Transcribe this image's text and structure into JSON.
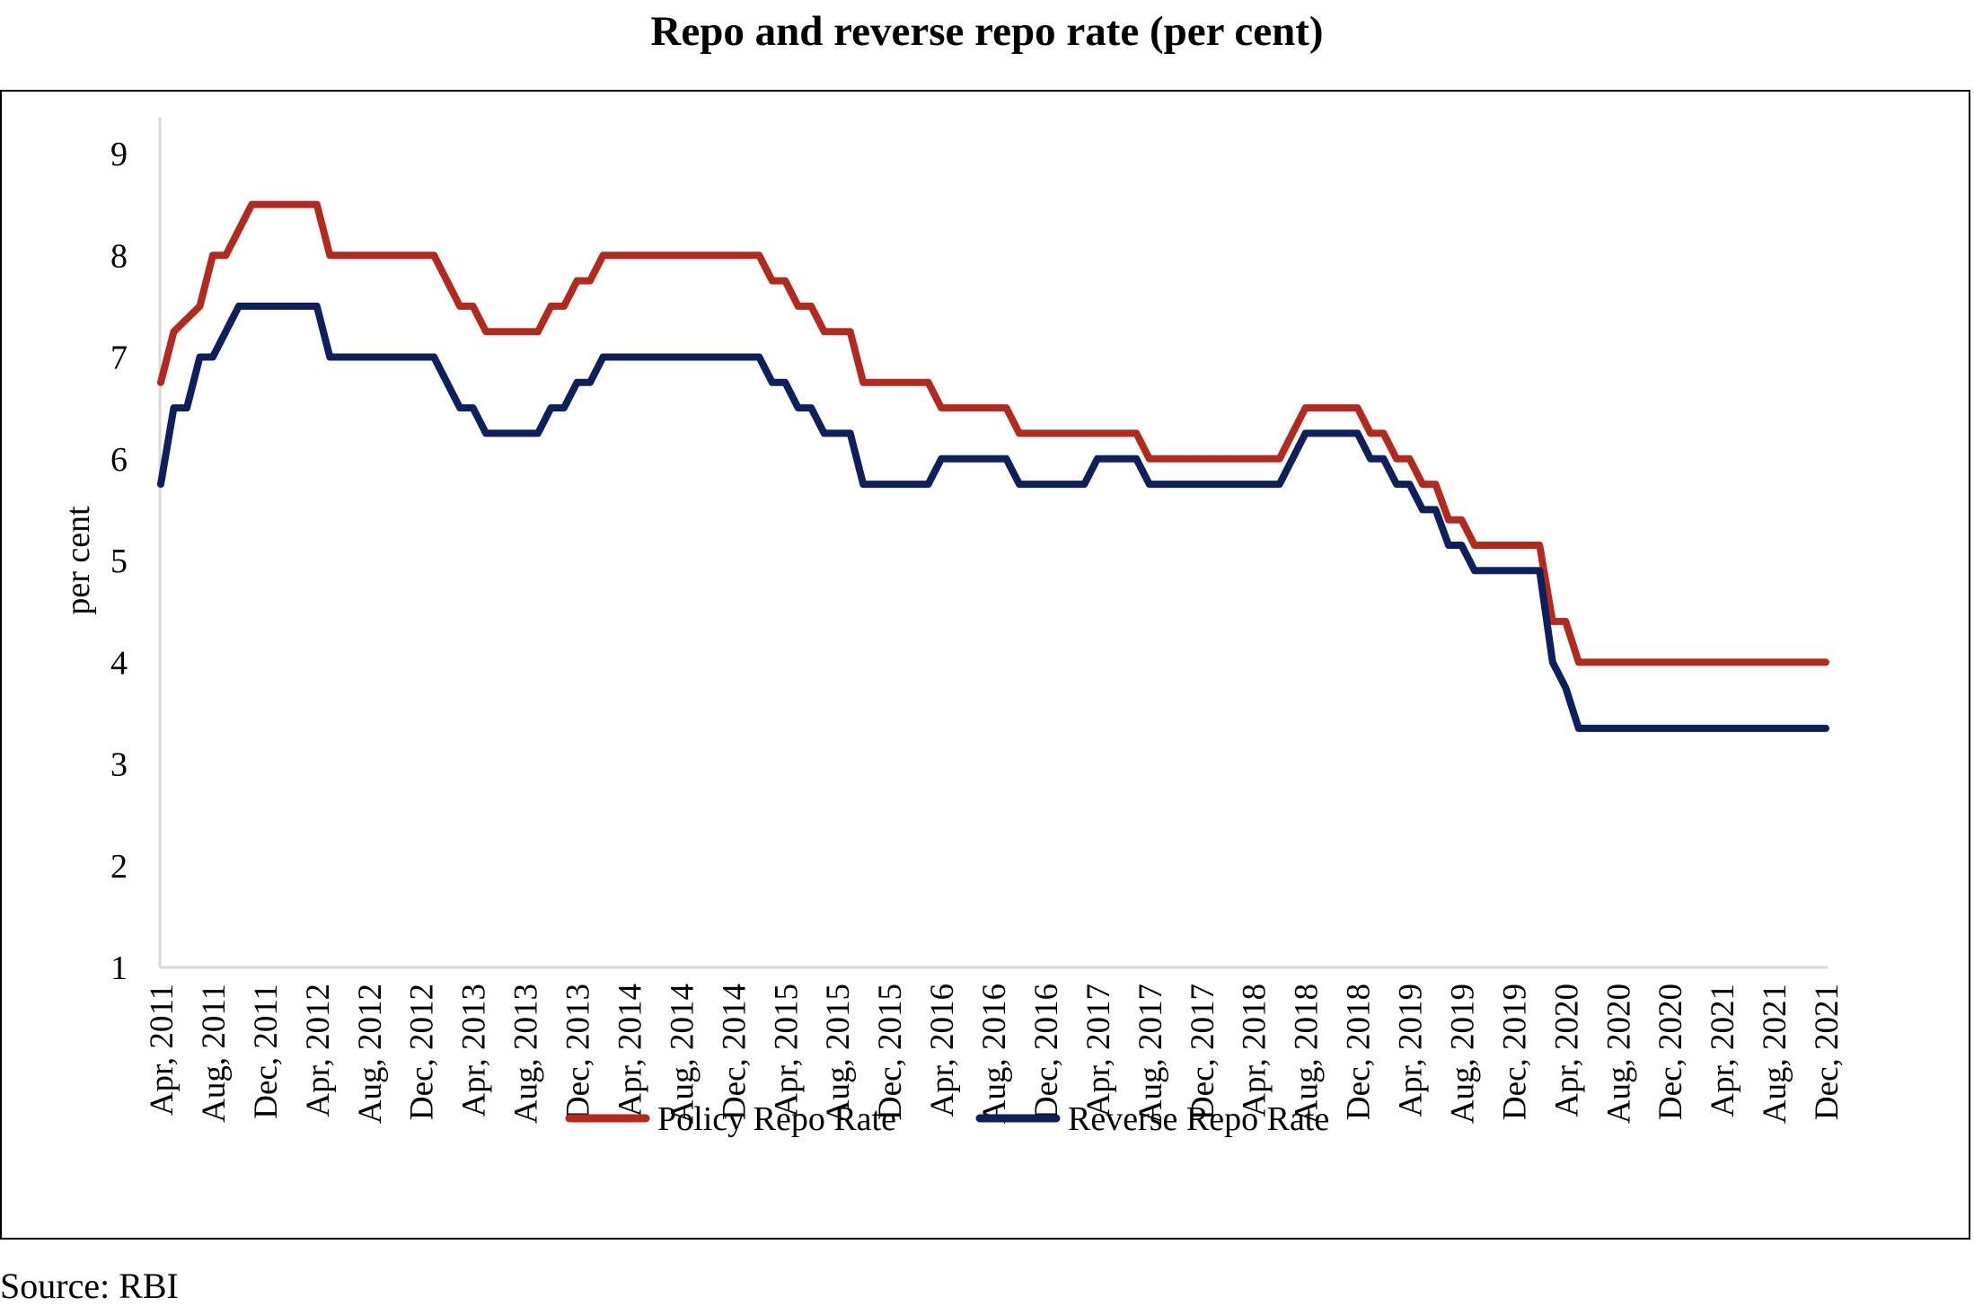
{
  "chart_data": {
    "type": "line",
    "title": "Repo and reverse repo rate (per cent)",
    "xlabel": "",
    "ylabel": "per cent",
    "ylim": [
      1,
      9
    ],
    "yticks": [
      1,
      2,
      3,
      4,
      5,
      6,
      7,
      8,
      9
    ],
    "grid": false,
    "legend_position": "bottom",
    "x_tick_labels": [
      "Apr, 2011",
      "Aug, 2011",
      "Dec, 2011",
      "Apr, 2012",
      "Aug, 2012",
      "Dec, 2012",
      "Apr, 2013",
      "Aug, 2013",
      "Dec, 2013",
      "Apr, 2014",
      "Aug, 2014",
      "Dec, 2014",
      "Apr, 2015",
      "Aug, 2015",
      "Dec, 2015",
      "Apr, 2016",
      "Aug, 2016",
      "Dec, 2016",
      "Apr, 2017",
      "Aug, 2017",
      "Dec, 2017",
      "Apr, 2018",
      "Aug, 2018",
      "Dec, 2018",
      "Apr, 2019",
      "Aug, 2019",
      "Dec, 2019",
      "Apr, 2020",
      "Aug, 2020",
      "Dec, 2020",
      "Apr, 2021",
      "Aug, 2021",
      "Dec, 2021"
    ],
    "series": [
      {
        "name": "Policy Repo Rate",
        "color": "#b22a1e",
        "values": [
          [
            "Apr, 2011",
            6.75
          ],
          [
            "May, 2011",
            7.25
          ],
          [
            "Jul, 2011",
            7.5
          ],
          [
            "Aug, 2011",
            8.0
          ],
          [
            "Sep, 2011",
            8.0
          ],
          [
            "Nov, 2011",
            8.5
          ],
          [
            "Apr, 2012",
            8.5
          ],
          [
            "May, 2012",
            8.0
          ],
          [
            "Jan, 2013",
            8.0
          ],
          [
            "Mar, 2013",
            7.5
          ],
          [
            "Apr, 2013",
            7.5
          ],
          [
            "May, 2013",
            7.25
          ],
          [
            "Sep, 2013",
            7.25
          ],
          [
            "Oct, 2013",
            7.5
          ],
          [
            "Nov, 2013",
            7.5
          ],
          [
            "Dec, 2013",
            7.75
          ],
          [
            "Jan, 2014",
            7.75
          ],
          [
            "Feb, 2014",
            8.0
          ],
          [
            "Feb, 2015",
            8.0
          ],
          [
            "Mar, 2015",
            7.75
          ],
          [
            "Apr, 2015",
            7.75
          ],
          [
            "May, 2015",
            7.5
          ],
          [
            "Jun, 2015",
            7.5
          ],
          [
            "Jul, 2015",
            7.25
          ],
          [
            "Sep, 2015",
            7.25
          ],
          [
            "Oct, 2015",
            6.75
          ],
          [
            "Mar, 2016",
            6.75
          ],
          [
            "Apr, 2016",
            6.5
          ],
          [
            "Sep, 2016",
            6.5
          ],
          [
            "Oct, 2016",
            6.25
          ],
          [
            "Jul, 2017",
            6.25
          ],
          [
            "Aug, 2017",
            6.0
          ],
          [
            "Jun, 2018",
            6.0
          ],
          [
            "Jul, 2018",
            6.25
          ],
          [
            "Aug, 2018",
            6.5
          ],
          [
            "Dec, 2018",
            6.5
          ],
          [
            "Jan, 2019",
            6.25
          ],
          [
            "Feb, 2019",
            6.25
          ],
          [
            "Mar, 2019",
            6.0
          ],
          [
            "Apr, 2019",
            6.0
          ],
          [
            "May, 2019",
            5.75
          ],
          [
            "Jun, 2019",
            5.75
          ],
          [
            "Jul, 2019",
            5.4
          ],
          [
            "Aug, 2019",
            5.4
          ],
          [
            "Sep, 2019",
            5.15
          ],
          [
            "Feb, 2020",
            5.15
          ],
          [
            "Mar, 2020",
            4.4
          ],
          [
            "Apr, 2020",
            4.4
          ],
          [
            "May, 2020",
            4.0
          ],
          [
            "Dec, 2021",
            4.0
          ]
        ]
      },
      {
        "name": "Reverse Repo Rate",
        "color": "#0e1f5c",
        "values": [
          [
            "Apr, 2011",
            5.75
          ],
          [
            "May, 2011",
            6.5
          ],
          [
            "Jun, 2011",
            6.5
          ],
          [
            "Jul, 2011",
            7.0
          ],
          [
            "Aug, 2011",
            7.0
          ],
          [
            "Oct, 2011",
            7.5
          ],
          [
            "Apr, 2012",
            7.5
          ],
          [
            "May, 2012",
            7.0
          ],
          [
            "Jan, 2013",
            7.0
          ],
          [
            "Mar, 2013",
            6.5
          ],
          [
            "Apr, 2013",
            6.5
          ],
          [
            "May, 2013",
            6.25
          ],
          [
            "Sep, 2013",
            6.25
          ],
          [
            "Oct, 2013",
            6.5
          ],
          [
            "Nov, 2013",
            6.5
          ],
          [
            "Dec, 2013",
            6.75
          ],
          [
            "Jan, 2014",
            6.75
          ],
          [
            "Feb, 2014",
            7.0
          ],
          [
            "Feb, 2015",
            7.0
          ],
          [
            "Mar, 2015",
            6.75
          ],
          [
            "Apr, 2015",
            6.75
          ],
          [
            "May, 2015",
            6.5
          ],
          [
            "Jun, 2015",
            6.5
          ],
          [
            "Jul, 2015",
            6.25
          ],
          [
            "Sep, 2015",
            6.25
          ],
          [
            "Oct, 2015",
            5.75
          ],
          [
            "Mar, 2016",
            5.75
          ],
          [
            "Apr, 2016",
            6.0
          ],
          [
            "Sep, 2016",
            6.0
          ],
          [
            "Oct, 2016",
            5.75
          ],
          [
            "Mar, 2017",
            5.75
          ],
          [
            "Apr, 2017",
            6.0
          ],
          [
            "Jul, 2017",
            6.0
          ],
          [
            "Aug, 2017",
            5.75
          ],
          [
            "Jun, 2018",
            5.75
          ],
          [
            "Jul, 2018",
            6.0
          ],
          [
            "Aug, 2018",
            6.25
          ],
          [
            "Dec, 2018",
            6.25
          ],
          [
            "Jan, 2019",
            6.0
          ],
          [
            "Feb, 2019",
            6.0
          ],
          [
            "Mar, 2019",
            5.75
          ],
          [
            "Apr, 2019",
            5.75
          ],
          [
            "May, 2019",
            5.5
          ],
          [
            "Jun, 2019",
            5.5
          ],
          [
            "Jul, 2019",
            5.15
          ],
          [
            "Aug, 2019",
            5.15
          ],
          [
            "Sep, 2019",
            4.9
          ],
          [
            "Feb, 2020",
            4.9
          ],
          [
            "Mar, 2020",
            4.0
          ],
          [
            "Apr, 2020",
            3.75
          ],
          [
            "May, 2020",
            3.35
          ],
          [
            "Dec, 2021",
            3.35
          ]
        ]
      }
    ],
    "source": "Source: RBI"
  }
}
